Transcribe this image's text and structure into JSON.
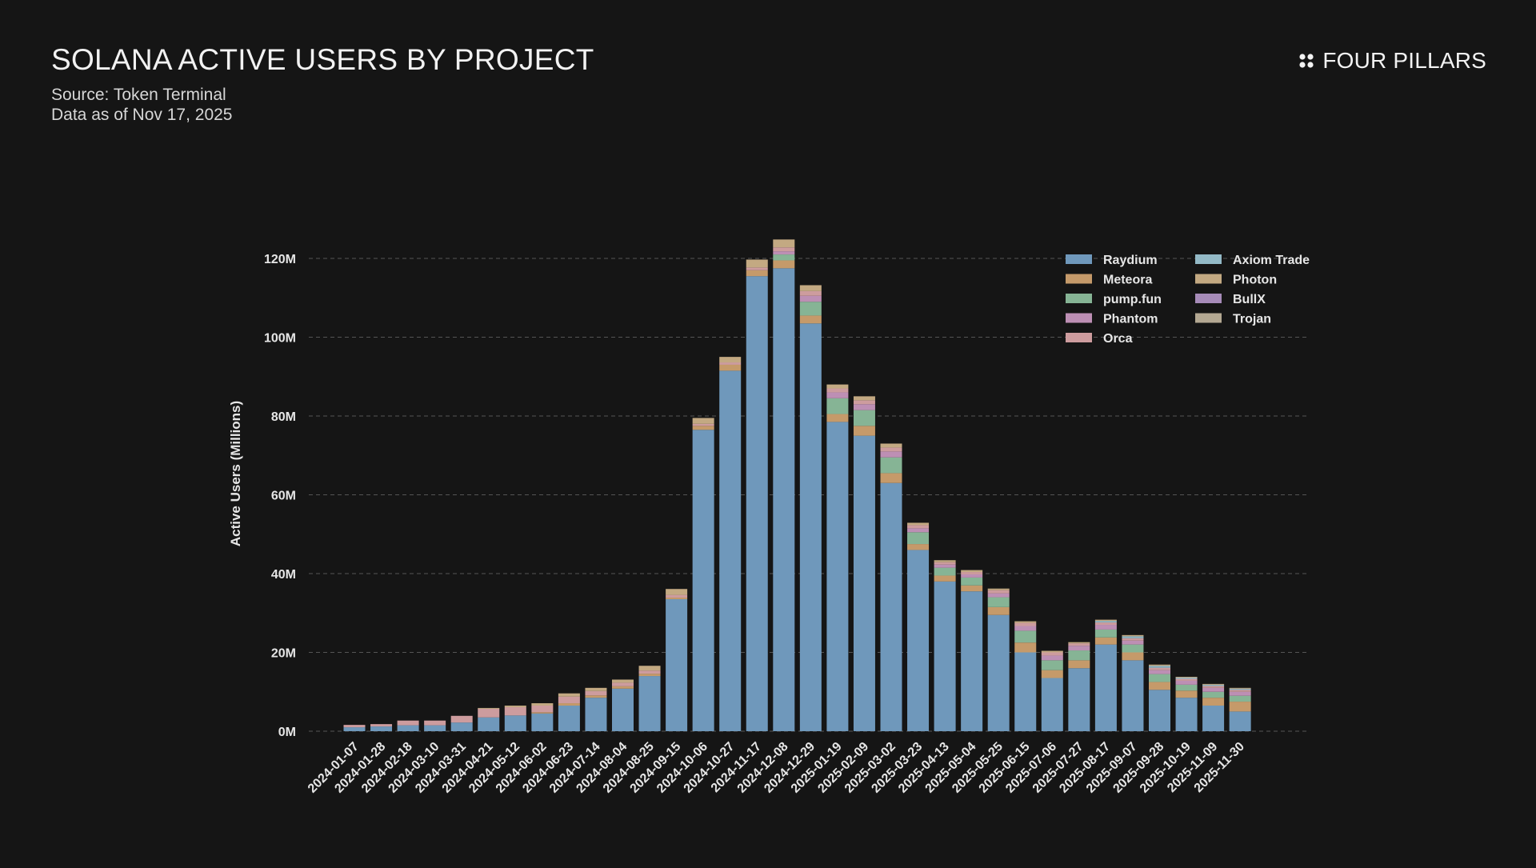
{
  "header": {
    "title": "SOLANA ACTIVE USERS BY PROJECT",
    "source": "Source: Token Terminal",
    "asof": "Data as of Nov 17, 2025"
  },
  "brand": {
    "name": "FOUR PILLARS",
    "icon": "four-dots-icon"
  },
  "chart_data": {
    "type": "bar",
    "stacked": true,
    "title": "SOLANA ACTIVE USERS BY PROJECT",
    "xlabel": "",
    "ylabel": "Active Users (Millions)",
    "ylim": [
      0,
      125
    ],
    "yticks": [
      0,
      20,
      40,
      60,
      80,
      100,
      120
    ],
    "ytick_suffix": "M",
    "grid": true,
    "legend_position": "top-right",
    "categories": [
      "2024-01-07",
      "2024-01-28",
      "2024-02-18",
      "2024-03-10",
      "2024-03-31",
      "2024-04-21",
      "2024-05-12",
      "2024-06-02",
      "2024-06-23",
      "2024-07-14",
      "2024-08-04",
      "2024-08-25",
      "2024-09-15",
      "2024-10-06",
      "2024-10-27",
      "2024-11-17",
      "2024-12-08",
      "2024-12-29",
      "2025-01-19",
      "2025-02-09",
      "2025-03-02",
      "2025-03-23",
      "2025-04-13",
      "2025-05-04",
      "2025-05-25",
      "2025-06-15",
      "2025-07-06",
      "2025-07-27",
      "2025-08-17",
      "2025-09-07",
      "2025-09-28",
      "2025-10-19",
      "2025-11-09",
      "2025-11-30"
    ],
    "series": [
      {
        "name": "Raydium",
        "color": "#6f98bb",
        "values": [
          1.0,
          1.2,
          1.5,
          1.5,
          2.2,
          3.5,
          4.0,
          4.5,
          6.5,
          8.5,
          10.8,
          14.0,
          33.5,
          76.5,
          91.5,
          115.5,
          117.5,
          103.5,
          78.5,
          75.0,
          63.0,
          46.0,
          38.0,
          35.5,
          29.5,
          20.0,
          13.5,
          16.0,
          22.0,
          18.0,
          10.5,
          8.5,
          6.5,
          5.0
        ]
      },
      {
        "name": "Meteora",
        "color": "#c59a6a",
        "values": [
          0,
          0,
          0,
          0,
          0,
          0,
          0,
          0.3,
          0.6,
          0.6,
          0.6,
          0.6,
          0.4,
          1.0,
          1.5,
          1.5,
          2.0,
          2.0,
          2.0,
          2.5,
          2.5,
          1.5,
          1.5,
          1.5,
          2.0,
          2.5,
          2.0,
          2.0,
          1.8,
          2.0,
          2.0,
          1.8,
          2.0,
          2.5
        ]
      },
      {
        "name": "pump.fun",
        "color": "#86b495",
        "values": [
          0,
          0,
          0,
          0,
          0,
          0,
          0,
          0,
          0,
          0,
          0,
          0,
          0,
          0,
          0,
          0,
          1.5,
          3.5,
          4.0,
          4.0,
          4.0,
          3.0,
          2.0,
          2.0,
          2.5,
          3.0,
          2.5,
          2.5,
          2.0,
          2.0,
          2.0,
          1.5,
          1.5,
          1.5
        ]
      },
      {
        "name": "Phantom",
        "color": "#bd8fb4",
        "values": [
          0,
          0,
          0,
          0,
          0,
          0,
          0,
          0,
          0,
          0,
          0,
          0,
          0,
          0,
          0,
          0,
          0.8,
          1.5,
          1.5,
          1.5,
          1.5,
          1.0,
          0.8,
          0.8,
          1.0,
          1.2,
          1.2,
          1.2,
          1.2,
          1.0,
          1.0,
          1.0,
          1.0,
          1.0
        ]
      },
      {
        "name": "Orca",
        "color": "#cd9c9e",
        "values": [
          0.6,
          0.6,
          1.2,
          1.2,
          1.7,
          2.2,
          2.1,
          1.7,
          1.7,
          1.1,
          0.9,
          0.8,
          0.7,
          0.5,
          0.6,
          0.7,
          1.0,
          1.2,
          1.0,
          1.0,
          1.0,
          0.8,
          0.6,
          0.6,
          0.8,
          0.8,
          0.8,
          0.6,
          0.6,
          0.6,
          0.6,
          0.5,
          0.5,
          0.5
        ]
      },
      {
        "name": "Axiom Trade",
        "color": "#93b9c6",
        "values": [
          0,
          0,
          0,
          0,
          0,
          0,
          0,
          0,
          0,
          0,
          0,
          0,
          0,
          0,
          0,
          0,
          0,
          0,
          0,
          0,
          0,
          0,
          0,
          0,
          0,
          0,
          0,
          0,
          0.4,
          0.5,
          0.5,
          0.3,
          0.3,
          0.3
        ]
      },
      {
        "name": "Photon",
        "color": "#c3a982",
        "values": [
          0,
          0,
          0,
          0,
          0,
          0.2,
          0.4,
          0.6,
          0.8,
          0.8,
          0.8,
          1.2,
          1.5,
          1.5,
          1.4,
          2.0,
          2.0,
          1.5,
          1.0,
          1.0,
          1.0,
          0.6,
          0.5,
          0.5,
          0.4,
          0.4,
          0.4,
          0.3,
          0.3,
          0.3,
          0.3,
          0.2,
          0.2,
          0.2
        ]
      },
      {
        "name": "BullX",
        "color": "#a68bb8",
        "values": [
          0,
          0,
          0,
          0,
          0,
          0,
          0,
          0,
          0,
          0,
          0,
          0,
          0,
          0,
          0,
          0,
          0,
          0,
          0,
          0,
          0,
          0,
          0,
          0,
          0,
          0,
          0,
          0,
          0,
          0,
          0,
          0,
          0,
          0
        ]
      },
      {
        "name": "Trojan",
        "color": "#b3a892",
        "values": [
          0,
          0,
          0,
          0,
          0,
          0,
          0,
          0,
          0,
          0,
          0,
          0,
          0,
          0,
          0,
          0,
          0,
          0,
          0,
          0,
          0,
          0,
          0,
          0,
          0,
          0,
          0,
          0,
          0,
          0,
          0,
          0,
          0,
          0
        ]
      }
    ]
  }
}
